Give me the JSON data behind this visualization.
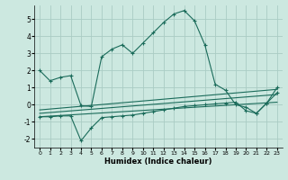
{
  "title": "",
  "xlabel": "Humidex (Indice chaleur)",
  "bg_color": "#cce8e0",
  "grid_color": "#aaccc4",
  "line_color": "#1a6b5a",
  "xlim": [
    -0.5,
    23.5
  ],
  "ylim": [
    -2.5,
    5.8
  ],
  "yticks": [
    -2,
    -1,
    0,
    1,
    2,
    3,
    4,
    5
  ],
  "xticks": [
    0,
    1,
    2,
    3,
    4,
    5,
    6,
    7,
    8,
    9,
    10,
    11,
    12,
    13,
    14,
    15,
    16,
    17,
    18,
    19,
    20,
    21,
    22,
    23
  ],
  "curve1_x": [
    0,
    1,
    2,
    3,
    4,
    5,
    6,
    7,
    8,
    9,
    10,
    11,
    12,
    13,
    14,
    15,
    16,
    17,
    18,
    19,
    20,
    21,
    22,
    23
  ],
  "curve1_y": [
    2.0,
    1.4,
    1.6,
    1.7,
    -0.05,
    -0.1,
    2.8,
    3.25,
    3.5,
    3.0,
    3.6,
    4.2,
    4.8,
    5.3,
    5.5,
    4.9,
    3.5,
    1.2,
    0.85,
    0.0,
    -0.15,
    -0.5,
    0.1,
    1.0
  ],
  "curve2_x": [
    0,
    1,
    2,
    3,
    4,
    5,
    6,
    7,
    8,
    9,
    10,
    11,
    12,
    13,
    14,
    15,
    16,
    17,
    18,
    19,
    20,
    21,
    22,
    23
  ],
  "curve2_y": [
    -0.7,
    -0.7,
    -0.65,
    -0.65,
    -2.1,
    -1.35,
    -0.75,
    -0.7,
    -0.65,
    -0.6,
    -0.5,
    -0.4,
    -0.3,
    -0.2,
    -0.1,
    -0.05,
    0.0,
    0.05,
    0.1,
    0.15,
    -0.35,
    -0.5,
    0.1,
    0.7
  ],
  "line1_x": [
    0,
    23
  ],
  "line1_y": [
    -0.7,
    0.15
  ],
  "line2_x": [
    0,
    23
  ],
  "line2_y": [
    -0.5,
    0.6
  ],
  "line3_x": [
    0,
    23
  ],
  "line3_y": [
    -0.3,
    0.9
  ]
}
